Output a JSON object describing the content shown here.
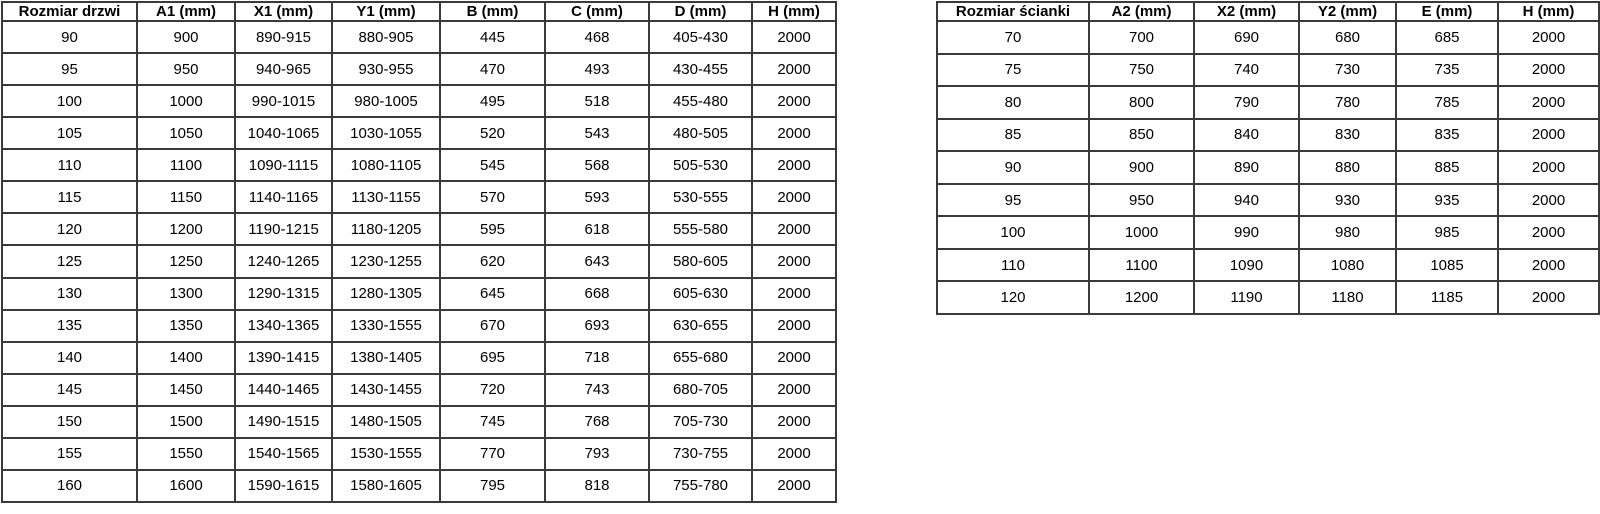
{
  "door_table": {
    "name": "door-size-table",
    "headers": [
      "Rozmiar drzwi",
      "A1 (mm)",
      "X1 (mm)",
      "Y1 (mm)",
      "B (mm)",
      "C (mm)",
      "D (mm)",
      "H (mm)"
    ],
    "rows": [
      [
        "90",
        "900",
        "890-915",
        "880-905",
        "445",
        "468",
        "405-430",
        "2000"
      ],
      [
        "95",
        "950",
        "940-965",
        "930-955",
        "470",
        "493",
        "430-455",
        "2000"
      ],
      [
        "100",
        "1000",
        "990-1015",
        "980-1005",
        "495",
        "518",
        "455-480",
        "2000"
      ],
      [
        "105",
        "1050",
        "1040-1065",
        "1030-1055",
        "520",
        "543",
        "480-505",
        "2000"
      ],
      [
        "110",
        "1100",
        "1090-1115",
        "1080-1105",
        "545",
        "568",
        "505-530",
        "2000"
      ],
      [
        "115",
        "1150",
        "1140-1165",
        "1130-1155",
        "570",
        "593",
        "530-555",
        "2000"
      ],
      [
        "120",
        "1200",
        "1190-1215",
        "1180-1205",
        "595",
        "618",
        "555-580",
        "2000"
      ],
      [
        "125",
        "1250",
        "1240-1265",
        "1230-1255",
        "620",
        "643",
        "580-605",
        "2000"
      ],
      [
        "130",
        "1300",
        "1290-1315",
        "1280-1305",
        "645",
        "668",
        "605-630",
        "2000"
      ],
      [
        "135",
        "1350",
        "1340-1365",
        "1330-1555",
        "670",
        "693",
        "630-655",
        "2000"
      ],
      [
        "140",
        "1400",
        "1390-1415",
        "1380-1405",
        "695",
        "718",
        "655-680",
        "2000"
      ],
      [
        "145",
        "1450",
        "1440-1465",
        "1430-1455",
        "720",
        "743",
        "680-705",
        "2000"
      ],
      [
        "150",
        "1500",
        "1490-1515",
        "1480-1505",
        "745",
        "768",
        "705-730",
        "2000"
      ],
      [
        "155",
        "1550",
        "1540-1565",
        "1530-1555",
        "770",
        "793",
        "730-755",
        "2000"
      ],
      [
        "160",
        "1600",
        "1590-1615",
        "1580-1605",
        "795",
        "818",
        "755-780",
        "2000"
      ]
    ]
  },
  "wall_table": {
    "name": "wall-size-table",
    "headers": [
      "Rozmiar ścianki",
      "A2 (mm)",
      "X2 (mm)",
      "Y2 (mm)",
      "E (mm)",
      "H (mm)"
    ],
    "rows": [
      [
        "70",
        "700",
        "690",
        "680",
        "685",
        "2000"
      ],
      [
        "75",
        "750",
        "740",
        "730",
        "735",
        "2000"
      ],
      [
        "80",
        "800",
        "790",
        "780",
        "785",
        "2000"
      ],
      [
        "85",
        "850",
        "840",
        "830",
        "835",
        "2000"
      ],
      [
        "90",
        "900",
        "890",
        "880",
        "885",
        "2000"
      ],
      [
        "95",
        "950",
        "940",
        "930",
        "935",
        "2000"
      ],
      [
        "100",
        "1000",
        "990",
        "980",
        "985",
        "2000"
      ],
      [
        "110",
        "1100",
        "1090",
        "1080",
        "1085",
        "2000"
      ],
      [
        "120",
        "1200",
        "1190",
        "1180",
        "1185",
        "2000"
      ]
    ]
  },
  "colors": {
    "border": "#3a3a3a",
    "text": "#000000",
    "background": "#ffffff"
  }
}
